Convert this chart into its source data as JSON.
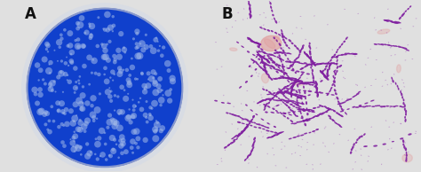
{
  "fig_width": 4.74,
  "fig_height": 1.94,
  "dpi": 100,
  "panel_A": {
    "label": "A",
    "label_color": "#111111",
    "label_fontsize": 12,
    "label_fontweight": "bold",
    "bg_outer": "#e8e8e8",
    "dish_color": "#1040cc",
    "dish_edge_color": "#c8ccd4",
    "dish_edge_width": 4,
    "colony_color": "#a0b8e8",
    "colony_alpha": 0.55,
    "num_colonies": 350,
    "colony_size_min": 0.8,
    "colony_size_max": 3.5
  },
  "panel_B": {
    "label": "B",
    "label_color": "#111111",
    "label_fontsize": 12,
    "label_fontweight": "bold",
    "bg_color": "#e0d898",
    "bacteria_color": "#8020a0",
    "bacteria_alpha": 0.9,
    "num_chains": 80,
    "pink_blob_color": "#e09090",
    "pink_blob_alpha": 0.5,
    "scatter_color": "#9030b0",
    "scatter_alpha": 0.35,
    "num_scatter": 200
  },
  "outer_bg": "#e0e0e0",
  "fig_border_color": "#999999"
}
